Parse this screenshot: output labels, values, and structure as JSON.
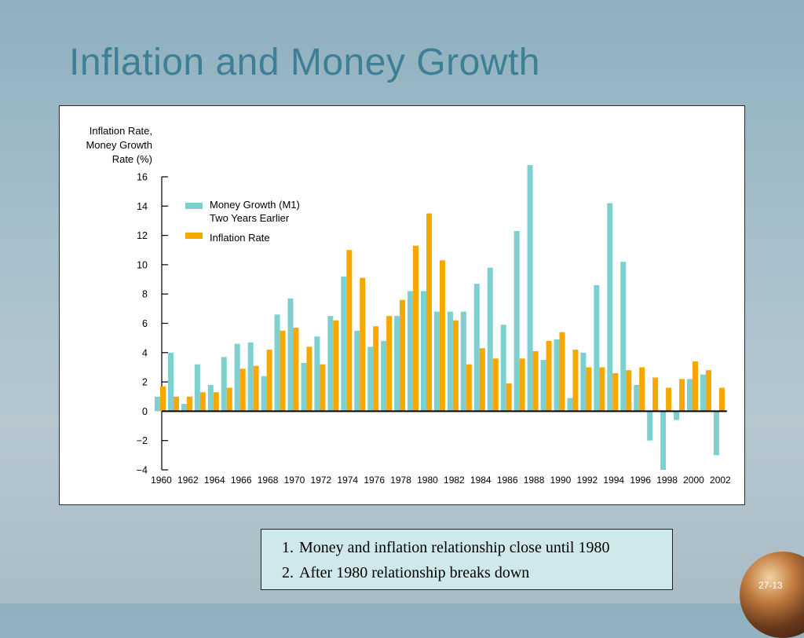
{
  "slide": {
    "title": "Inflation and Money Growth",
    "page_number": "27-13",
    "notes": [
      {
        "num": "1.",
        "text": "Money and inflation relationship close until 1980"
      },
      {
        "num": "2.",
        "text": "After 1980 relationship breaks down"
      }
    ]
  },
  "chart_data": {
    "type": "bar",
    "title": "",
    "ylabel": [
      "Inflation Rate,",
      "Money Growth",
      "Rate (%)"
    ],
    "xlabel": "",
    "ylim": [
      -4,
      16
    ],
    "yticks": [
      "16",
      "14",
      "12",
      "10",
      "8",
      "6",
      "4",
      "2",
      "0",
      "−2",
      "−4"
    ],
    "ytick_values": [
      16,
      14,
      12,
      10,
      8,
      6,
      4,
      2,
      0,
      -2,
      -4
    ],
    "xtick_labels": [
      "1960",
      "1962",
      "1964",
      "1966",
      "1968",
      "1970",
      "1972",
      "1974",
      "1976",
      "1978",
      "1980",
      "1982",
      "1984",
      "1986",
      "1988",
      "1990",
      "1992",
      "1994",
      "1996",
      "1998",
      "2000",
      "2002"
    ],
    "categories": [
      "1960",
      "1961",
      "1962",
      "1963",
      "1964",
      "1965",
      "1966",
      "1967",
      "1968",
      "1969",
      "1970",
      "1971",
      "1972",
      "1973",
      "1974",
      "1975",
      "1976",
      "1977",
      "1978",
      "1979",
      "1980",
      "1981",
      "1982",
      "1983",
      "1984",
      "1985",
      "1986",
      "1987",
      "1988",
      "1989",
      "1990",
      "1991",
      "1992",
      "1993",
      "1994",
      "1995",
      "1996",
      "1997",
      "1998",
      "1999",
      "2000",
      "2001",
      "2002"
    ],
    "series": [
      {
        "name": "Money Growth (M1) Two Years Earlier",
        "legend_lines": [
          "Money Growth (M1)",
          "Two Years Earlier"
        ],
        "color": "#7ed0d0",
        "values": [
          1.0,
          4.0,
          0.5,
          3.2,
          1.8,
          3.7,
          4.6,
          4.7,
          2.4,
          6.6,
          7.7,
          3.3,
          5.1,
          6.5,
          9.2,
          5.5,
          4.4,
          4.8,
          6.5,
          8.2,
          8.2,
          6.8,
          6.8,
          6.8,
          8.7,
          9.8,
          5.9,
          12.3,
          16.8,
          3.5,
          4.9,
          0.9,
          4.0,
          8.6,
          14.2,
          10.2,
          1.8,
          -2.0,
          -4.0,
          -0.6,
          2.2,
          2.5,
          -3.0
        ]
      },
      {
        "name": "Inflation Rate",
        "legend_lines": [
          "Inflation Rate"
        ],
        "color": "#f7a800",
        "values": [
          1.7,
          1.0,
          1.0,
          1.3,
          1.3,
          1.6,
          2.9,
          3.1,
          4.2,
          5.5,
          5.7,
          4.4,
          3.2,
          6.2,
          11.0,
          9.1,
          5.8,
          6.5,
          7.6,
          11.3,
          13.5,
          10.3,
          6.2,
          3.2,
          4.3,
          3.6,
          1.9,
          3.6,
          4.1,
          4.8,
          5.4,
          4.2,
          3.0,
          3.0,
          2.6,
          2.8,
          3.0,
          2.3,
          1.6,
          2.2,
          3.4,
          2.8,
          1.6
        ]
      }
    ],
    "grid": false,
    "legend_position": "top-left"
  }
}
